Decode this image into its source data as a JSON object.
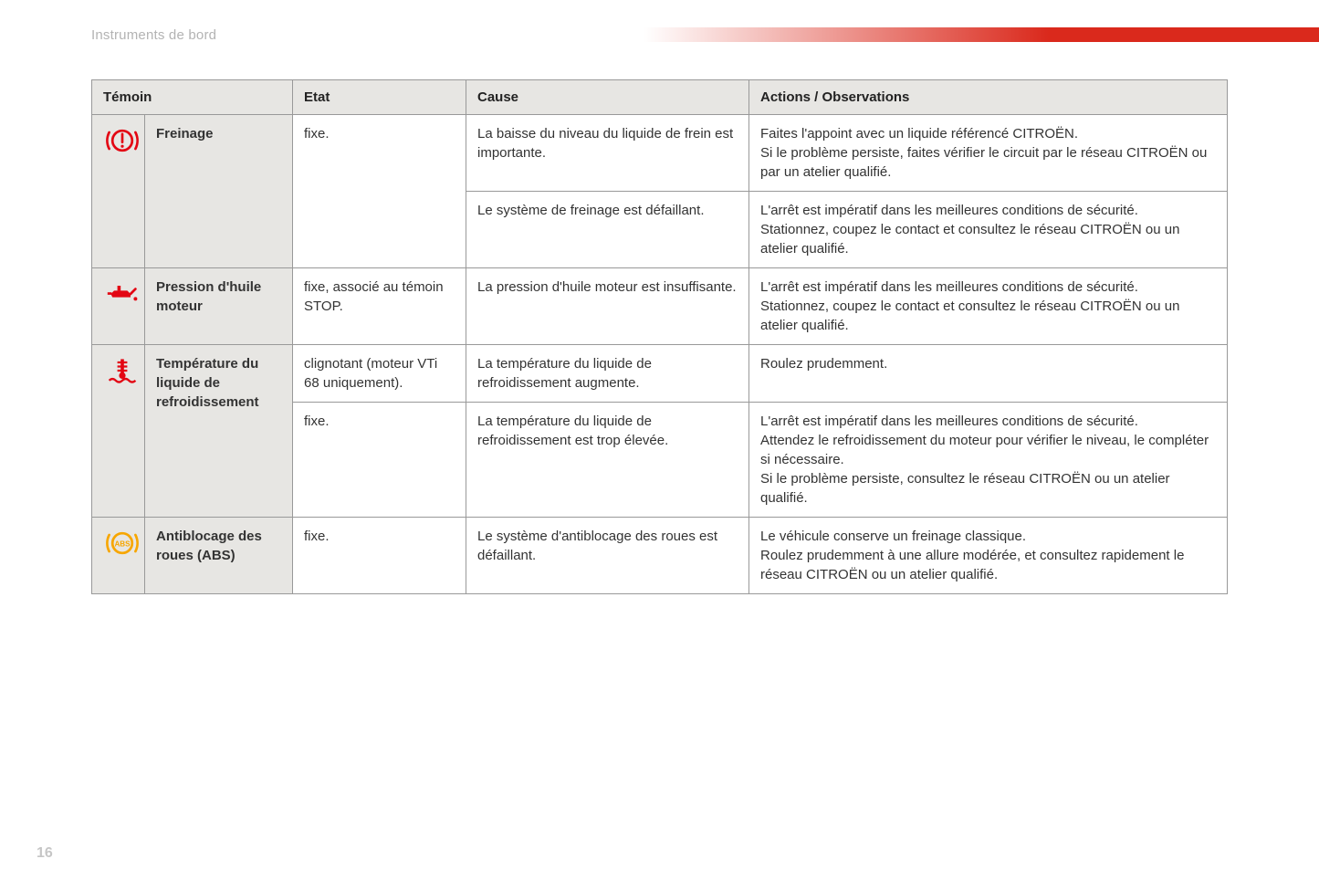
{
  "section_title": "Instruments de bord",
  "page_number": "16",
  "colors": {
    "brand_red": "#da291c",
    "icon_red": "#e30613",
    "icon_amber": "#f7a600",
    "header_bg": "#e7e6e3",
    "border": "#999999",
    "text": "#333333",
    "muted": "#b3b3b3"
  },
  "table": {
    "columns": [
      "Témoin",
      "Etat",
      "Cause",
      "Actions / Observations"
    ],
    "rows": [
      {
        "icon": "brake",
        "icon_color": "#e30613",
        "name": "Freinage",
        "states": [
          {
            "etat": "fixe.",
            "cause": "La baisse du niveau du liquide de frein est importante.",
            "action": "Faites l'appoint avec un liquide référencé CITROËN.\nSi le problème persiste, faites vérifier le circuit par le réseau CITROËN ou par un atelier qualifié."
          },
          {
            "etat": "",
            "cause": "Le système de freinage est défaillant.",
            "action": "L'arrêt est impératif dans les meilleures conditions de sécurité.\nStationnez, coupez le contact et consultez le réseau CITROËN ou un atelier qualifié."
          }
        ]
      },
      {
        "icon": "oil",
        "icon_color": "#e30613",
        "name": "Pression d'huile moteur",
        "states": [
          {
            "etat": "fixe, associé au témoin STOP.",
            "cause": "La pression d'huile moteur est insuffisante.",
            "action": "L'arrêt est impératif dans les meilleures conditions de sécurité.\nStationnez, coupez le contact et consultez le réseau CITROËN ou un atelier qualifié."
          }
        ]
      },
      {
        "icon": "coolant",
        "icon_color": "#e30613",
        "name": "Température du liquide de refroidissement",
        "states": [
          {
            "etat": "clignotant (moteur VTi 68 uniquement).",
            "cause": "La température du liquide de refroidissement augmente.",
            "action": "Roulez prudemment."
          },
          {
            "etat": "fixe.",
            "cause": "La température du liquide de refroidissement est trop élevée.",
            "action": "L'arrêt est impératif dans les meilleures conditions de sécurité.\nAttendez le refroidissement du moteur pour vérifier le niveau, le compléter si nécessaire.\nSi le problème persiste, consultez le réseau CITROËN ou un atelier qualifié."
          }
        ]
      },
      {
        "icon": "abs",
        "icon_color": "#f7a600",
        "name": "Antiblocage des roues (ABS)",
        "states": [
          {
            "etat": "fixe.",
            "cause": "Le système d'antiblocage des roues est défaillant.",
            "action": "Le véhicule conserve un freinage classique.\nRoulez prudemment à une allure modérée, et consultez rapidement le réseau CITROËN ou un atelier qualifié."
          }
        ]
      }
    ]
  }
}
